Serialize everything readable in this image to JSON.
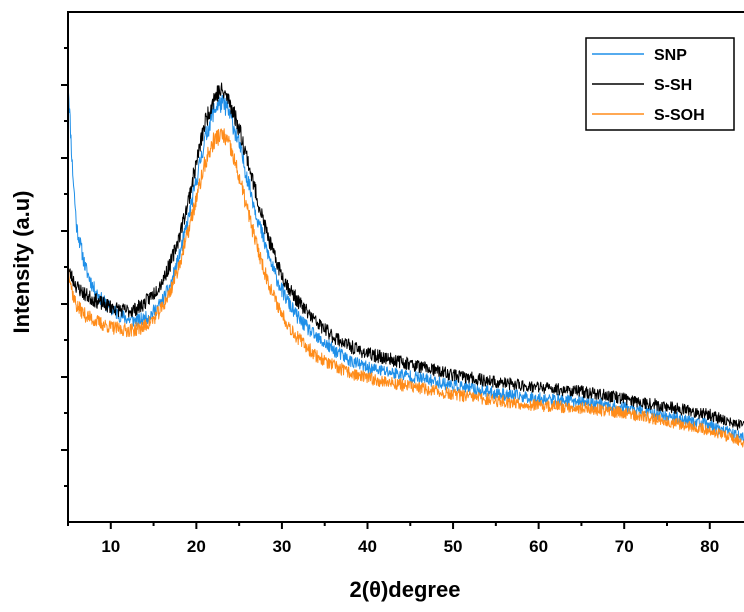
{
  "chart_data": {
    "type": "line",
    "title": "",
    "xlabel": "2(θ)degree",
    "ylabel": "Intensity (a.u)",
    "xlim": [
      5,
      84
    ],
    "ylim": [
      0,
      100
    ],
    "x_ticks": [
      10,
      20,
      30,
      40,
      50,
      60,
      70,
      80
    ],
    "y_tick_labels_shown": false,
    "grid": false,
    "legend_position": "top-right",
    "series": [
      {
        "name": "SNP",
        "color": "#1f8fe8",
        "x": [
          5,
          5.5,
          6,
          7,
          8,
          9,
          10,
          11,
          12,
          13,
          14,
          15,
          16,
          17,
          18,
          19,
          20,
          21,
          22,
          22.5,
          23,
          23.5,
          24,
          25,
          26,
          27,
          28,
          29,
          30,
          31,
          32,
          34,
          36,
          38,
          40,
          45,
          50,
          55,
          60,
          65,
          70,
          75,
          80,
          84
        ],
        "y": [
          87,
          70,
          58,
          50,
          45.8,
          43.4,
          41.8,
          40.6,
          39.8,
          39.4,
          39.8,
          41.2,
          43.2,
          46.5,
          52,
          59,
          67,
          75,
          80.5,
          81.8,
          82,
          81.4,
          79.5,
          74,
          67.2,
          60.5,
          54.5,
          49.4,
          45.4,
          42.3,
          39.8,
          36.2,
          33.8,
          31.6,
          30.2,
          28.6,
          26.8,
          25.2,
          24.2,
          23.6,
          22.4,
          20.8,
          19,
          16.4
        ]
      },
      {
        "name": "S-SH",
        "color": "#000000",
        "x": [
          5,
          6,
          7,
          8,
          9,
          10,
          11,
          12,
          13,
          14,
          15,
          16,
          17,
          18,
          19,
          20,
          21,
          22,
          22.5,
          23,
          23.5,
          24,
          25,
          26,
          27,
          28,
          29,
          30,
          31,
          32,
          34,
          36,
          38,
          40,
          45,
          50,
          55,
          60,
          65,
          70,
          75,
          80,
          84
        ],
        "y": [
          49.5,
          46.2,
          44.6,
          43.6,
          42.8,
          42.2,
          41.6,
          41.4,
          41.8,
          43,
          44.8,
          47.2,
          50.8,
          56,
          62.5,
          70.5,
          78.2,
          83,
          84.2,
          84.4,
          83.6,
          82,
          77.2,
          71,
          64.2,
          58,
          52.6,
          48.4,
          45.4,
          43,
          39.2,
          36.4,
          34.4,
          33,
          31,
          28.8,
          27.4,
          26.4,
          25.6,
          24.2,
          22.6,
          21,
          18.6
        ]
      },
      {
        "name": "S-SOH",
        "color": "#ff8c1a",
        "x": [
          5,
          5.5,
          6,
          7,
          8,
          9,
          10,
          11,
          12,
          13,
          14,
          15,
          16,
          17,
          18,
          19,
          20,
          21,
          22,
          22.5,
          23,
          23.5,
          24,
          25,
          26,
          27,
          28,
          29,
          30,
          31,
          32,
          34,
          36,
          38,
          40,
          45,
          50,
          55,
          60,
          65,
          70,
          75,
          80,
          84
        ],
        "y": [
          50.5,
          45,
          42.4,
          40.6,
          39.6,
          38.8,
          38.2,
          37.8,
          37.6,
          37.8,
          38.4,
          39.8,
          42,
          45.4,
          50.5,
          56.6,
          63.4,
          70.2,
          74.6,
          75.6,
          75.8,
          75,
          73.2,
          67.6,
          61,
          54.6,
          49,
          44.4,
          40.8,
          38,
          35.8,
          32.6,
          30.6,
          29.2,
          28.2,
          26.6,
          25,
          23.8,
          22.8,
          22.4,
          21.4,
          19.8,
          18,
          15.6
        ]
      }
    ]
  }
}
